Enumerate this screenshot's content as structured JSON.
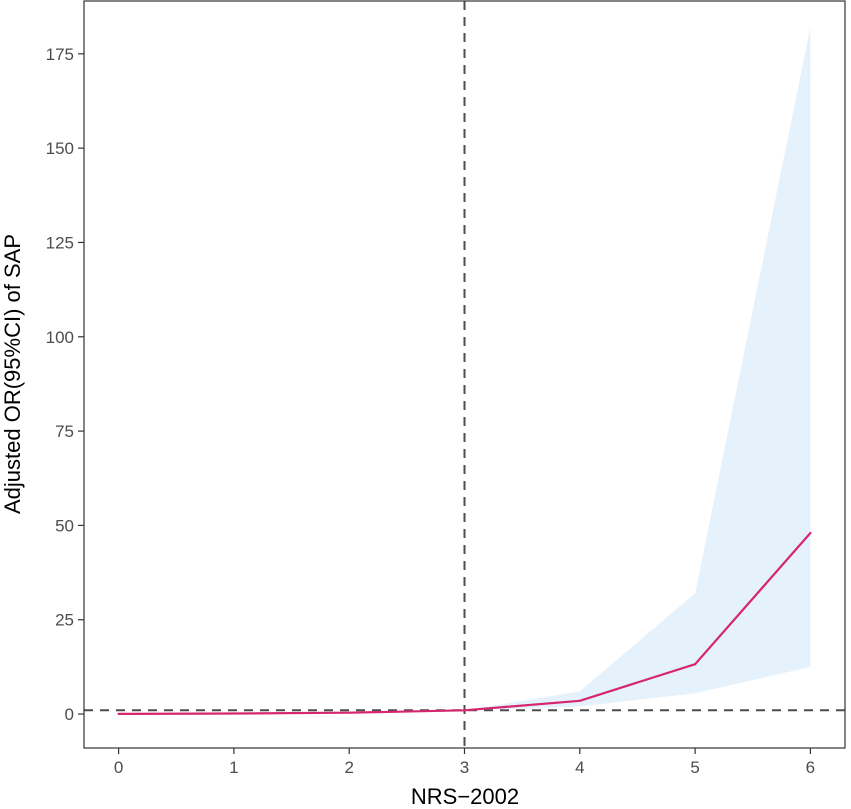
{
  "chart_data": {
    "type": "line",
    "title": "",
    "xlabel": "NRS−2002",
    "ylabel": "Adjusted OR(95%CI) of SAP",
    "x": [
      0,
      1,
      2,
      3,
      4,
      5,
      6
    ],
    "xlim": [
      -0.3,
      6.3
    ],
    "ylim": [
      -9,
      189
    ],
    "x_ticks": [
      "0",
      "1",
      "2",
      "3",
      "4",
      "5",
      "6"
    ],
    "y_ticks": [
      "0",
      "25",
      "50",
      "75",
      "100",
      "125",
      "150",
      "175"
    ],
    "series": [
      {
        "values": [
          0.05,
          0.15,
          0.35,
          1.0,
          3.5,
          13.2,
          48.0
        ],
        "ci_lower": [
          0.0,
          0.05,
          0.2,
          1.0,
          2.0,
          5.5,
          12.5
        ],
        "ci_upper": [
          0.2,
          0.3,
          0.6,
          1.0,
          6.0,
          32.0,
          182.0
        ],
        "color": "#d6266f",
        "band_color": "#e5f2fc"
      }
    ],
    "reference_lines": [
      {
        "axis": "x",
        "value": 3,
        "style": "dashed",
        "color": "#4d4d4d"
      },
      {
        "axis": "y",
        "value": 1,
        "style": "dashed",
        "color": "#4d4d4d"
      }
    ],
    "grid": false,
    "legend": "none"
  }
}
